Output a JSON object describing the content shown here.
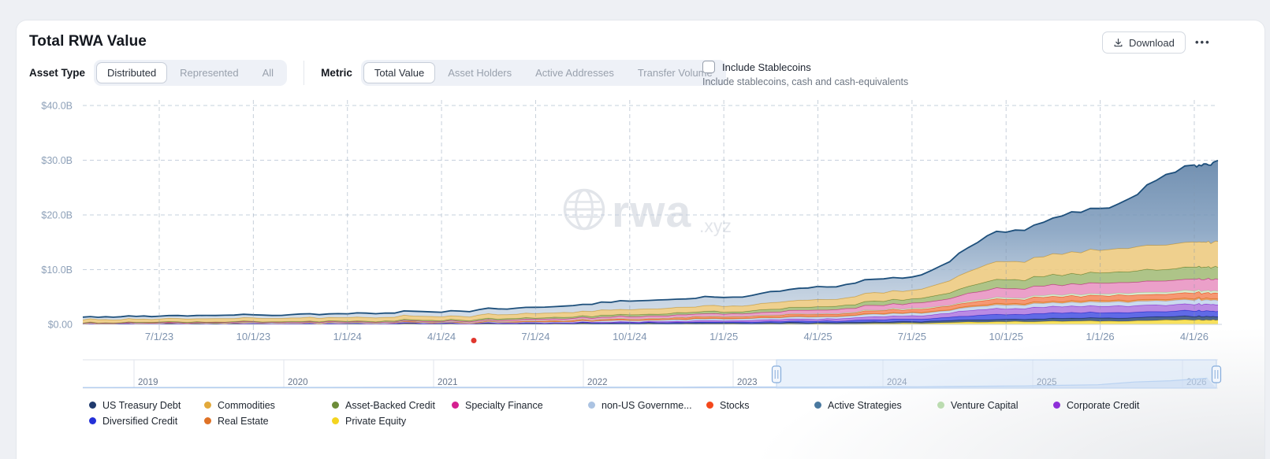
{
  "header": {
    "title": "Total RWA Value",
    "download_label": "Download",
    "more_label": "•••"
  },
  "controls": {
    "asset_type": {
      "label": "Asset Type",
      "options": [
        "Distributed",
        "Represented",
        "All"
      ],
      "selected": "Distributed"
    },
    "metric": {
      "label": "Metric",
      "options": [
        "Total Value",
        "Asset Holders",
        "Active Addresses",
        "Transfer Volume"
      ],
      "selected": "Total Value"
    },
    "stablecoins": {
      "label": "Include Stablecoins",
      "description": "Include stablecoins, cash and cash-equivalents",
      "checked": false
    }
  },
  "watermark": {
    "text": "rwa",
    "suffix": ".xyz"
  },
  "chart_data": {
    "type": "area",
    "stacked": true,
    "title": "Total RWA Value",
    "unit": "USD billions",
    "ylim": [
      0,
      40
    ],
    "grid": true,
    "legend_position": "bottom",
    "y_ticks": [
      {
        "label": "$40.0B",
        "value": 40
      },
      {
        "label": "$30.0B",
        "value": 30
      },
      {
        "label": "$20.0B",
        "value": 20
      },
      {
        "label": "$10.0B",
        "value": 10
      },
      {
        "label": "$0.00",
        "value": 0
      }
    ],
    "x_ticks": [
      "7/1/23",
      "10/1/23",
      "1/1/24",
      "4/1/24",
      "7/1/24",
      "10/1/24",
      "1/1/25",
      "4/1/25",
      "7/1/25",
      "10/1/25",
      "1/1/26",
      "4/1/26"
    ],
    "x_sample_points": [
      "4/15/23",
      "7/1/23",
      "10/1/23",
      "1/1/24",
      "4/1/24",
      "7/1/24",
      "10/1/24",
      "1/1/25",
      "4/1/25",
      "7/1/25",
      "10/1/25",
      "1/1/26",
      "4/1/26"
    ],
    "series_note": "values in $B at each x_sample_point, stack order bottom to top",
    "series": [
      {
        "name": "Private Equity",
        "dot": "#f4d41f",
        "fill": "#f7dd47",
        "stroke": "#e3c414",
        "values": [
          0.04,
          0.04,
          0.04,
          0.05,
          0.05,
          0.06,
          0.08,
          0.1,
          0.12,
          0.2,
          0.5,
          0.6,
          0.8
        ]
      },
      {
        "name": "US Treasury Debt",
        "dot": "#1f3a6d",
        "fill": "#35507f",
        "stroke": "#16294f",
        "values": [
          0.08,
          0.08,
          0.09,
          0.1,
          0.1,
          0.12,
          0.15,
          0.18,
          0.22,
          0.3,
          0.45,
          0.55,
          0.65
        ]
      },
      {
        "name": "Diversified Credit",
        "dot": "#2430d8",
        "fill": "#4a55e2",
        "stroke": "#1e28c8",
        "values": [
          0.02,
          0.02,
          0.02,
          0.03,
          0.04,
          0.06,
          0.1,
          0.15,
          0.28,
          0.45,
          0.9,
          1.0,
          1.0
        ]
      },
      {
        "name": "Corporate Credit",
        "dot": "#8e2fd8",
        "fill": "#b07ae0",
        "stroke": "#8429cf",
        "values": [
          0.0,
          0.0,
          0.0,
          0.01,
          0.03,
          0.06,
          0.12,
          0.25,
          0.4,
          0.6,
          1.1,
          1.2,
          1.2
        ]
      },
      {
        "name": "non-US Governme...",
        "dot": "#abc3e2",
        "fill": "#c3d5ec",
        "stroke": "#a3bcdf",
        "values": [
          0.04,
          0.05,
          0.06,
          0.08,
          0.1,
          0.15,
          0.25,
          0.3,
          0.38,
          0.45,
          0.65,
          0.7,
          0.8
        ]
      },
      {
        "name": "Real Estate",
        "dot": "#df7226",
        "fill": "#e9954f",
        "stroke": "#d4701f",
        "values": [
          0.01,
          0.01,
          0.02,
          0.02,
          0.03,
          0.05,
          0.07,
          0.1,
          0.12,
          0.15,
          0.25,
          0.3,
          0.3
        ]
      },
      {
        "name": "Stocks",
        "dot": "#f4481c",
        "fill": "#f58a5e",
        "stroke": "#e94a1d",
        "values": [
          0.01,
          0.01,
          0.01,
          0.03,
          0.06,
          0.12,
          0.2,
          0.3,
          0.4,
          0.55,
          0.8,
          0.9,
          1.0
        ]
      },
      {
        "name": "Venture Capital",
        "dot": "#bbdcb0",
        "fill": "#d3e8ca",
        "stroke": "#a7d29a",
        "values": [
          0.0,
          0.0,
          0.0,
          0.0,
          0.01,
          0.03,
          0.06,
          0.08,
          0.1,
          0.15,
          0.28,
          0.35,
          0.4
        ]
      },
      {
        "name": "Specialty Finance",
        "dot": "#d52090",
        "fill": "#e893c2",
        "stroke": "#c12a86",
        "values": [
          0.04,
          0.05,
          0.07,
          0.1,
          0.15,
          0.25,
          0.4,
          0.45,
          0.7,
          0.9,
          1.7,
          1.9,
          2.1
        ]
      },
      {
        "name": "Asset-Backed Credit",
        "dot": "#6d8c39",
        "fill": "#a3bc77",
        "stroke": "#637f2f",
        "values": [
          0.08,
          0.09,
          0.1,
          0.13,
          0.18,
          0.25,
          0.35,
          0.4,
          0.6,
          0.8,
          1.6,
          1.9,
          2.2
        ]
      },
      {
        "name": "Commodities",
        "dot": "#e2a93b",
        "fill": "#edca7e",
        "stroke": "#cf9d35",
        "values": [
          0.55,
          0.57,
          0.6,
          0.65,
          0.7,
          0.8,
          0.95,
          1.0,
          1.3,
          1.6,
          3.4,
          4.1,
          4.6
        ]
      },
      {
        "name": "Active Strategies",
        "dot": "#49789f",
        "fill": "gradient",
        "stroke": "#1d4f7b",
        "values": [
          0.45,
          0.5,
          0.6,
          0.7,
          0.85,
          1.1,
          1.5,
          1.6,
          2.3,
          2.5,
          5.5,
          7.5,
          14.0
        ]
      }
    ],
    "totals_approx": [
      1.32,
      1.42,
      1.61,
      1.9,
      2.3,
      3.05,
      4.23,
      4.91,
      6.92,
      8.65,
      17.13,
      21.0,
      29.05
    ],
    "annotations": [
      {
        "type": "dot",
        "color": "#e0372e",
        "near_x_label": "4/1/24"
      }
    ]
  },
  "legend": {
    "items_display_order": [
      {
        "name": "US Treasury Debt",
        "color": "#1f3a6d"
      },
      {
        "name": "Commodities",
        "color": "#e2a93b"
      },
      {
        "name": "Asset-Backed Credit",
        "color": "#6d8c39"
      },
      {
        "name": "Specialty Finance",
        "color": "#d52090"
      },
      {
        "name": "non-US Governme...",
        "color": "#abc3e2"
      },
      {
        "name": "Stocks",
        "color": "#f4481c"
      },
      {
        "name": "Active Strategies",
        "color": "#49789f"
      },
      {
        "name": "Venture Capital",
        "color": "#bbdcb0"
      },
      {
        "name": "Corporate Credit",
        "color": "#8e2fd8"
      },
      {
        "name": "Diversified Credit",
        "color": "#2430d8"
      },
      {
        "name": "Real Estate",
        "color": "#df7226"
      },
      {
        "name": "Private Equity",
        "color": "#f4d41f"
      }
    ]
  },
  "brush": {
    "years": [
      "2019",
      "2020",
      "2021",
      "2022",
      "2023",
      "2024",
      "2025",
      "2026"
    ],
    "selection": {
      "from": "2023 (Apr)",
      "to": "2026 (Apr)"
    }
  },
  "colors": {
    "page_bg": "#eef0f4",
    "card_bg": "#ffffff",
    "grid": "#c6d0de",
    "axis": "#c9d2de",
    "x_tick_text": "#7e93af",
    "y_tick_text": "#8da0b8",
    "brush_selection": "#cfe0f6",
    "watermark": "#e2e5ea"
  }
}
